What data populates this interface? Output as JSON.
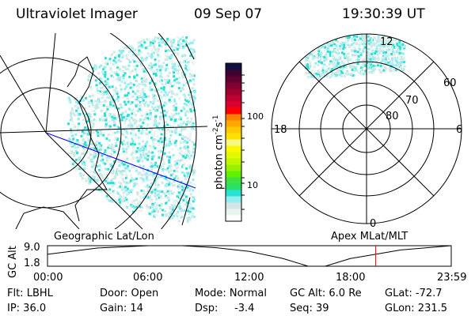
{
  "header": {
    "instrument": "Ultraviolet Imager",
    "date": "09 Sep 07",
    "time": "19:30:39 UT"
  },
  "colorbar": {
    "label": "photon cm",
    "exp1": "-2",
    "s": "s",
    "exp2": "-1",
    "ticks": [
      "100",
      "10"
    ],
    "colors": [
      "#ffffff",
      "#e8f4ee",
      "#d4e6e4",
      "#90eef2",
      "#28e0d4",
      "#28e068",
      "#40e040",
      "#60f000",
      "#98f000",
      "#c0f800",
      "#e0f800",
      "#f8f800",
      "#f8f880",
      "#ffe000",
      "#ffc800",
      "#ffa800",
      "#ff8000",
      "#ff0000",
      "#e00030",
      "#c00030",
      "#a00030",
      "#800030",
      "#600030",
      "#400030",
      "#101040"
    ]
  },
  "maps": {
    "left_label": "Geographic Lat/Lon",
    "right_label": "Apex MLat/MLT",
    "mlat_labels": [
      "60",
      "70",
      "80"
    ],
    "mlt_labels": [
      "12",
      "18",
      "6",
      "0"
    ]
  },
  "chart_data": {
    "type": "line",
    "ylabel": "GC Alt",
    "yticks": [
      "9.0",
      "1.8"
    ],
    "ylim": [
      1.8,
      9.0
    ],
    "xticks": [
      "00:00",
      "06:00",
      "12:00",
      "18:00",
      "23:59"
    ],
    "xlim": [
      0,
      24
    ],
    "x": [
      0,
      3,
      6,
      8,
      10,
      12,
      14,
      15.5,
      16.5,
      18,
      19.5,
      21,
      24
    ],
    "y": [
      6.0,
      8.2,
      9.0,
      9.0,
      8.3,
      7.0,
      4.5,
      1.8,
      1.8,
      4.5,
      6.0,
      7.5,
      9.0
    ],
    "marker_time": 19.51,
    "marker_color": "#ff0000"
  },
  "info": [
    [
      "Flt: LBHL",
      "IP: 36.0"
    ],
    [
      "Door: Open",
      "Gain: 14"
    ],
    [
      "Mode: Normal",
      "Dsp:     -3.4"
    ],
    [
      "GC Alt: 6.0 Re",
      "Seq: 39"
    ],
    [
      "GLat: -72.7",
      "GLon: 231.5"
    ]
  ]
}
